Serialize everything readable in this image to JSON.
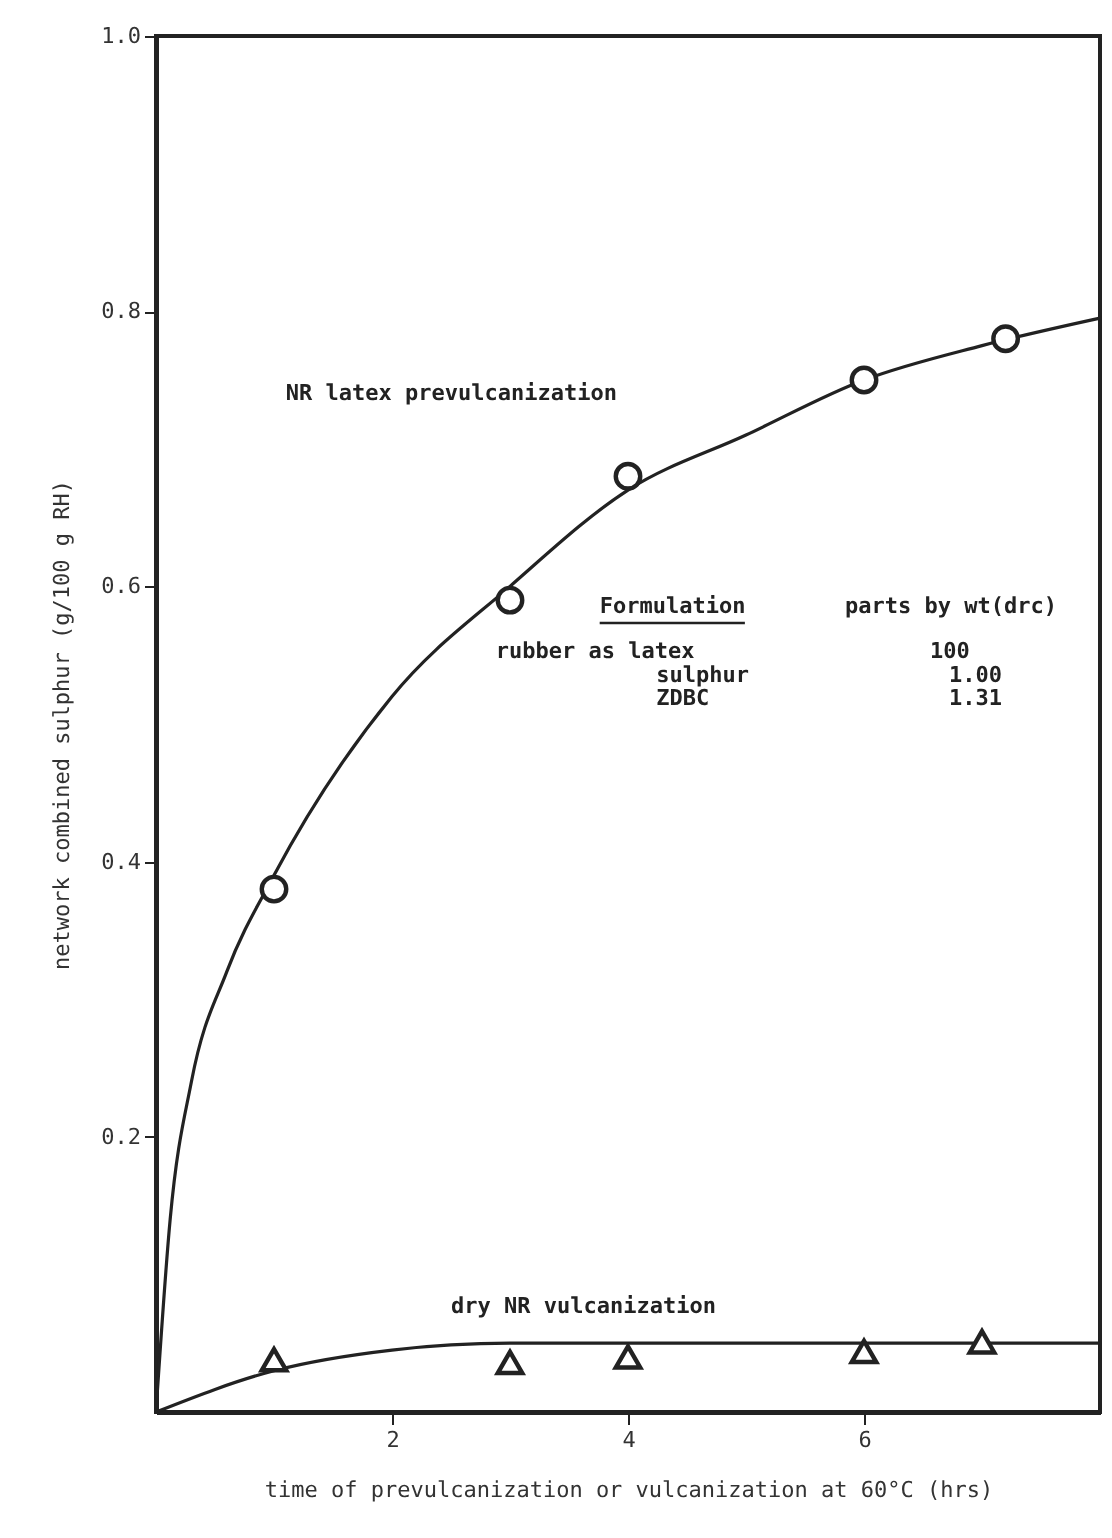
{
  "chart_data": {
    "type": "scatter",
    "xlabel": "time of prevulcanization or vulcanization at 60°C (hrs)",
    "ylabel": "network combined sulphur (g/100 g RH)",
    "xlim": [
      0,
      8
    ],
    "xticks": [
      2,
      4,
      6
    ],
    "ylim": [
      0,
      1
    ],
    "yticks": [
      0.2,
      0.4,
      0.6,
      0.8,
      {
        "value": 1,
        "label": "1.0"
      }
    ],
    "grid": false,
    "series": [
      {
        "type": "line",
        "color": "#222222",
        "marker": "none",
        "x": [
          0,
          0.12,
          0.3,
          0.6,
          1,
          2,
          3,
          4,
          5,
          6,
          7,
          8
        ],
        "values": [
          0,
          0.14,
          0.24,
          0.32,
          0.39,
          0.52,
          0.6,
          0.67,
          0.71,
          0.75,
          0.775,
          0.795
        ]
      },
      {
        "name": "NR  latex prevulcanization",
        "color": "#222222",
        "marker": "circle",
        "x": [
          1,
          3,
          4,
          6,
          7.2
        ],
        "values": [
          0.38,
          0.59,
          0.68,
          0.75,
          0.78
        ]
      },
      {
        "type": "line",
        "color": "#222222",
        "marker": "none",
        "x": [
          0,
          1,
          2,
          3,
          4,
          6,
          8
        ],
        "values": [
          0,
          0.03,
          0.045,
          0.05,
          0.05,
          0.05,
          0.05
        ]
      },
      {
        "name": "dry NR vulcanization",
        "color": "#222222",
        "marker": "triangle",
        "x": [
          1,
          3,
          4,
          6,
          7
        ],
        "values": [
          0.038,
          0.036,
          0.04,
          0.044,
          0.051
        ]
      }
    ],
    "annotations": [
      "Formulation",
      "parts by wt(drc)",
      "rubber as latex",
      "100",
      "sulphur",
      "1.00",
      "ZDBC",
      "1.31"
    ]
  }
}
